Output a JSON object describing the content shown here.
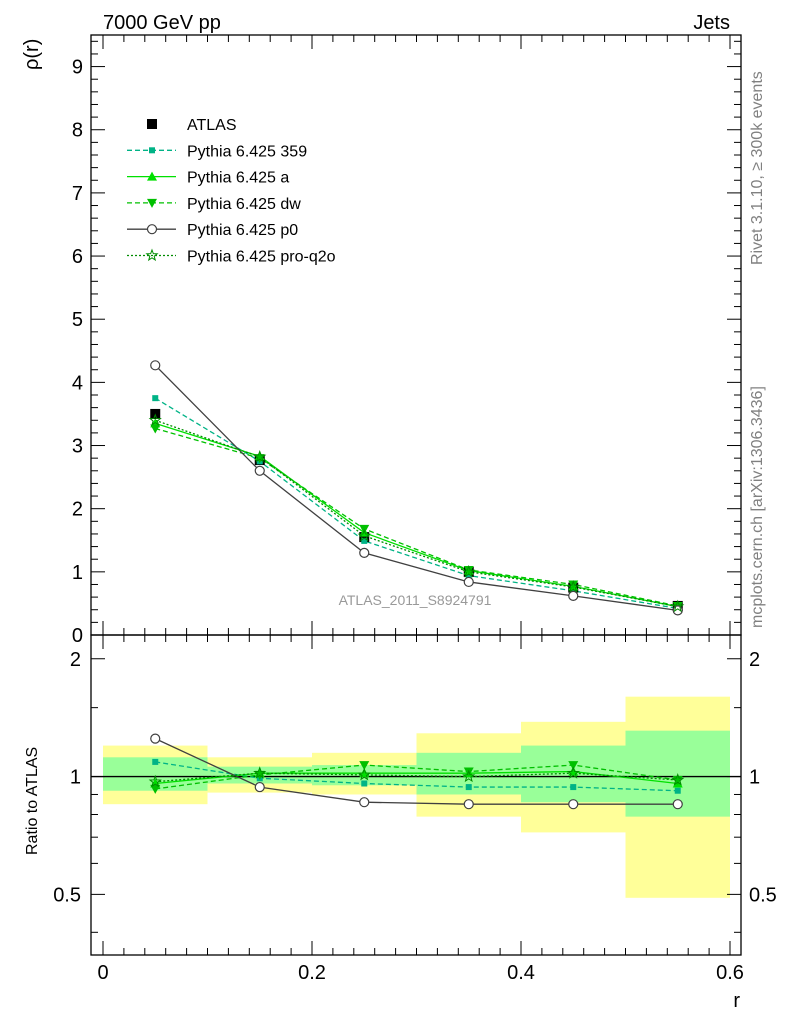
{
  "header": {
    "left": "7000 GeV pp",
    "right": "Jets"
  },
  "side_text": {
    "rivet": "Rivet 3.1.10, ≥ 300k events",
    "mcplots": "mcplots.cern.ch [arXiv:1306.3436]"
  },
  "watermark": "ATLAS_2011_S8924791",
  "colors": {
    "atlas": "#000000",
    "p359": "#00b386",
    "a": "#00e000",
    "dw": "#00c000",
    "p0": "#404040",
    "pq2o": "#008c00",
    "band_outer": "#ffff99",
    "band_inner": "#99ff99"
  },
  "chart_data": [
    {
      "type": "line",
      "title": "",
      "xlabel": "r",
      "ylabel": "ρ(r)",
      "xlim": [
        0,
        0.6
      ],
      "ylim": [
        0,
        9.5
      ],
      "x": [
        0.05,
        0.15,
        0.25,
        0.35,
        0.45,
        0.55
      ],
      "yticks": [
        0,
        1,
        2,
        3,
        4,
        5,
        6,
        7,
        8,
        9
      ],
      "ytick_labels": [
        "0",
        "1",
        "2",
        "3",
        "4",
        "5",
        "6",
        "7",
        "8",
        "9"
      ],
      "series": [
        {
          "name": "ATLAS",
          "key": "atlas",
          "marker": "square",
          "dash": "none",
          "values": [
            3.5,
            2.77,
            1.55,
            1.0,
            0.75,
            0.46
          ]
        },
        {
          "name": "Pythia 6.425 359",
          "key": "p359",
          "marker": "smallsquare",
          "dash": "5,3",
          "values": [
            3.75,
            2.75,
            1.49,
            0.94,
            0.7,
            0.42
          ]
        },
        {
          "name": "Pythia 6.425 a",
          "key": "a",
          "marker": "triup",
          "dash": "none",
          "values": [
            3.35,
            2.83,
            1.62,
            1.02,
            0.77,
            0.45
          ]
        },
        {
          "name": "Pythia 6.425 dw",
          "key": "dw",
          "marker": "tridown",
          "dash": "5,3",
          "values": [
            3.27,
            2.8,
            1.68,
            1.03,
            0.8,
            0.46
          ]
        },
        {
          "name": "Pythia 6.425 p0",
          "key": "p0",
          "marker": "circle",
          "dash": "none",
          "values": [
            4.27,
            2.6,
            1.3,
            0.84,
            0.62,
            0.39
          ]
        },
        {
          "name": "Pythia 6.425 pro-q2o",
          "key": "pq2o",
          "marker": "star",
          "dash": "2,2",
          "values": [
            3.4,
            2.82,
            1.57,
            1.0,
            0.76,
            0.45
          ]
        }
      ]
    },
    {
      "type": "line",
      "title": "",
      "xlabel": "r",
      "ylabel": "Ratio to ATLAS",
      "xlim": [
        0,
        0.6
      ],
      "ylim": [
        0.35,
        2.3
      ],
      "xticks": [
        0,
        0.2,
        0.4,
        0.6
      ],
      "xtick_labels": [
        "0",
        "0.2",
        "0.4",
        "0.6"
      ],
      "yticks": [
        0.5,
        1,
        2
      ],
      "ytick_labels": [
        "0.5",
        "1",
        "2"
      ],
      "x": [
        0.05,
        0.15,
        0.25,
        0.35,
        0.45,
        0.55
      ],
      "bin_edges": [
        0,
        0.1,
        0.2,
        0.3,
        0.4,
        0.5,
        0.6
      ],
      "band_outer": {
        "low": [
          0.85,
          0.91,
          0.9,
          0.79,
          0.72,
          0.49
        ],
        "high": [
          1.2,
          1.12,
          1.15,
          1.29,
          1.38,
          1.6
        ]
      },
      "band_inner": {
        "low": [
          0.92,
          0.96,
          0.95,
          0.9,
          0.86,
          0.79
        ],
        "high": [
          1.12,
          1.06,
          1.07,
          1.15,
          1.2,
          1.31
        ]
      },
      "series": [
        {
          "name": "Pythia 6.425 359",
          "key": "p359",
          "marker": "smallsquare",
          "dash": "5,3",
          "values": [
            1.09,
            0.99,
            0.96,
            0.94,
            0.94,
            0.92
          ]
        },
        {
          "name": "Pythia 6.425 a",
          "key": "a",
          "marker": "triup",
          "dash": "none",
          "values": [
            0.96,
            1.02,
            1.02,
            1.02,
            1.03,
            0.96
          ]
        },
        {
          "name": "Pythia 6.425 dw",
          "key": "dw",
          "marker": "tridown",
          "dash": "5,3",
          "values": [
            0.93,
            1.01,
            1.07,
            1.03,
            1.07,
            0.98
          ]
        },
        {
          "name": "Pythia 6.425 p0",
          "key": "p0",
          "marker": "circle",
          "dash": "none",
          "values": [
            1.25,
            0.94,
            0.86,
            0.85,
            0.85,
            0.85
          ]
        },
        {
          "name": "Pythia 6.425 pro-q2o",
          "key": "pq2o",
          "marker": "star",
          "dash": "2,2",
          "values": [
            0.97,
            1.02,
            1.01,
            1.0,
            1.02,
            0.98
          ]
        }
      ]
    }
  ]
}
